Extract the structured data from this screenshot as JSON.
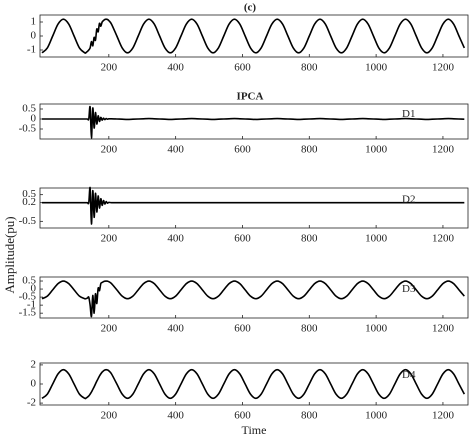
{
  "chart_data": [
    {
      "type": "line",
      "title": "(c)",
      "x": [
        0,
        16,
        32,
        48,
        64,
        80,
        96,
        112,
        128,
        132,
        136,
        140,
        144,
        148,
        152,
        156,
        160,
        164,
        168,
        172,
        176,
        180,
        184,
        188,
        192,
        196,
        200,
        208,
        224,
        240,
        256,
        272,
        288,
        304,
        320,
        336,
        352,
        368,
        384,
        400,
        416,
        432,
        448,
        464,
        480,
        496,
        512,
        528,
        544,
        560,
        576,
        592,
        608,
        624,
        640,
        656,
        672,
        688,
        704,
        720,
        736,
        752,
        768,
        784,
        800,
        816,
        832,
        848,
        864,
        880,
        896,
        912,
        928,
        944,
        960,
        976,
        992,
        1008,
        1024,
        1040,
        1056,
        1072,
        1088,
        1104,
        1120,
        1136,
        1152,
        1168,
        1184,
        1200,
        1216,
        1232,
        1248,
        1264
      ],
      "series": [
        {
          "color": "#000000",
          "values": [
            -1.2,
            -0.85,
            0,
            0.85,
            1.2,
            0.85,
            0,
            -0.85,
            -1.2,
            -1.18,
            -1.1,
            -1.0,
            -0.85,
            -0.4,
            -0.7,
            -0.1,
            -0.3,
            0.5,
            0.3,
            0.9,
            0.7,
            1.0,
            1.1,
            1.18,
            1.2,
            1.18,
            1.1,
            0.85,
            0,
            -0.85,
            -1.2,
            -0.85,
            0,
            0.85,
            1.2,
            0.85,
            0,
            -0.85,
            -1.2,
            -0.85,
            0,
            0.85,
            1.2,
            0.85,
            0,
            -0.85,
            -1.2,
            -0.85,
            0,
            0.85,
            1.2,
            0.85,
            0,
            -0.85,
            -1.2,
            -0.85,
            0,
            0.85,
            1.2,
            0.85,
            0,
            -0.85,
            -1.2,
            -0.85,
            0,
            0.85,
            1.2,
            0.85,
            0,
            -0.85,
            -1.2,
            -0.85,
            0,
            0.85,
            1.2,
            0.85,
            0,
            -0.85,
            -1.2,
            -0.85,
            0,
            0.85,
            1.2,
            0.85,
            0,
            -0.85,
            -1.2,
            -0.85,
            0,
            0.85,
            1.2,
            0.85,
            0,
            -0.85
          ]
        }
      ],
      "xlim": [
        -6,
        1275
      ],
      "xticks": [
        200,
        400,
        600,
        800,
        1000,
        1200
      ],
      "ylim": [
        -1.5,
        1.5
      ],
      "yticks": [
        1,
        0,
        -1
      ]
    },
    {
      "type": "line",
      "title": "IPCA",
      "annotation": "D1",
      "x": [
        0,
        16,
        32,
        48,
        64,
        80,
        96,
        112,
        128,
        132,
        136,
        140,
        144,
        148,
        152,
        156,
        160,
        164,
        168,
        172,
        176,
        180,
        184,
        188,
        192,
        196,
        200,
        208,
        224,
        240,
        256,
        272,
        288,
        304,
        320,
        336,
        352,
        368,
        384,
        400,
        416,
        432,
        448,
        464,
        480,
        496,
        512,
        528,
        544,
        560,
        576,
        592,
        608,
        624,
        640,
        656,
        672,
        688,
        704,
        720,
        736,
        752,
        768,
        784,
        800,
        816,
        832,
        848,
        864,
        880,
        896,
        912,
        928,
        944,
        960,
        976,
        992,
        1008,
        1024,
        1040,
        1056,
        1072,
        1088,
        1104,
        1120,
        1136,
        1152,
        1168,
        1184,
        1200,
        1216,
        1232,
        1248,
        1264
      ],
      "series": [
        {
          "color": "#000000",
          "values": [
            0,
            0,
            0,
            0,
            0,
            0,
            0,
            0,
            0,
            0,
            0,
            0,
            0.6,
            -0.95,
            0.55,
            -0.45,
            0.32,
            -0.25,
            0.16,
            -0.12,
            0.08,
            -0.06,
            0.04,
            -0.03,
            0.02,
            -0.01,
            0.01,
            0.01,
            0,
            -0.01,
            -0.02,
            -0.01,
            0,
            0.01,
            0.02,
            0.01,
            0,
            -0.01,
            -0.02,
            -0.01,
            0,
            0.01,
            0.02,
            0.01,
            0,
            -0.01,
            -0.02,
            -0.01,
            0,
            0.01,
            0.02,
            0.01,
            0,
            -0.01,
            -0.02,
            -0.01,
            0,
            0.01,
            0.02,
            0.01,
            0,
            -0.01,
            -0.02,
            -0.01,
            0,
            0.01,
            0.02,
            0.01,
            0,
            -0.01,
            -0.02,
            -0.01,
            0,
            0.01,
            0.02,
            0.01,
            0,
            -0.01,
            -0.02,
            -0.01,
            0,
            0.01,
            0.02,
            0.01,
            0,
            -0.01,
            -0.02,
            -0.01,
            0,
            0.01,
            0.02,
            0.01,
            0,
            -0.01
          ]
        }
      ],
      "xlim": [
        -6,
        1275
      ],
      "xticks": [
        200,
        400,
        600,
        800,
        1000,
        1200
      ],
      "ylim": [
        -1,
        0.75
      ],
      "yticks": [
        0.5,
        0,
        -0.5
      ]
    },
    {
      "type": "line",
      "annotation": "D2",
      "ylabel": "Amplitude(pu)",
      "x": [
        0,
        16,
        32,
        48,
        64,
        80,
        96,
        112,
        128,
        132,
        136,
        140,
        144,
        148,
        152,
        156,
        160,
        164,
        168,
        172,
        176,
        180,
        184,
        188,
        192,
        196,
        200,
        208,
        224,
        240,
        256,
        272,
        288,
        304,
        320,
        336,
        352,
        368,
        384,
        400,
        416,
        432,
        448,
        464,
        480,
        496,
        512,
        528,
        544,
        560,
        576,
        592,
        608,
        624,
        640,
        656,
        672,
        688,
        704,
        720,
        736,
        752,
        768,
        784,
        800,
        816,
        832,
        848,
        864,
        880,
        896,
        912,
        928,
        944,
        960,
        976,
        992,
        1008,
        1024,
        1040,
        1056,
        1072,
        1088,
        1104,
        1120,
        1136,
        1152,
        1168,
        1184,
        1200,
        1216,
        1232,
        1248,
        1264
      ],
      "series": [
        {
          "color": "#000000",
          "values": [
            0.2,
            0.2,
            0.2,
            0.2,
            0.2,
            0.2,
            0.2,
            0.2,
            0.2,
            0.2,
            0.2,
            0.2,
            0.75,
            -0.6,
            0.65,
            -0.35,
            0.55,
            -0.15,
            0.45,
            0,
            0.35,
            0.1,
            0.28,
            0.15,
            0.24,
            0.18,
            0.21,
            0.2,
            0.2,
            0.2,
            0.2,
            0.2,
            0.2,
            0.2,
            0.2,
            0.2,
            0.2,
            0.2,
            0.2,
            0.2,
            0.2,
            0.2,
            0.2,
            0.2,
            0.2,
            0.2,
            0.2,
            0.2,
            0.2,
            0.2,
            0.2,
            0.2,
            0.2,
            0.2,
            0.2,
            0.2,
            0.2,
            0.2,
            0.2,
            0.2,
            0.2,
            0.2,
            0.2,
            0.2,
            0.2,
            0.2,
            0.2,
            0.2,
            0.2,
            0.2,
            0.2,
            0.2,
            0.2,
            0.2,
            0.2,
            0.2,
            0.2,
            0.2,
            0.2,
            0.2,
            0.2,
            0.2,
            0.2,
            0.2,
            0.2,
            0.2,
            0.2,
            0.2,
            0.2,
            0.2,
            0.2,
            0.2,
            0.2,
            0.2
          ]
        }
      ],
      "xlim": [
        -6,
        1275
      ],
      "xticks": [
        200,
        400,
        600,
        800,
        1000,
        1200
      ],
      "ylim": [
        -0.75,
        0.75
      ],
      "yticks": [
        0.5,
        0.2,
        -0.5
      ]
    },
    {
      "type": "line",
      "annotation": "D3",
      "x": [
        0,
        16,
        32,
        48,
        64,
        80,
        96,
        112,
        128,
        132,
        136,
        140,
        144,
        148,
        152,
        156,
        160,
        164,
        168,
        172,
        176,
        180,
        184,
        188,
        192,
        196,
        200,
        208,
        224,
        240,
        256,
        272,
        288,
        304,
        320,
        336,
        352,
        368,
        384,
        400,
        416,
        432,
        448,
        464,
        480,
        496,
        512,
        528,
        544,
        560,
        576,
        592,
        608,
        624,
        640,
        656,
        672,
        688,
        704,
        720,
        736,
        752,
        768,
        784,
        800,
        816,
        832,
        848,
        864,
        880,
        896,
        912,
        928,
        944,
        960,
        976,
        992,
        1008,
        1024,
        1040,
        1056,
        1072,
        1088,
        1104,
        1120,
        1136,
        1152,
        1168,
        1184,
        1200,
        1216,
        1232,
        1248,
        1264
      ],
      "series": [
        {
          "color": "#000000",
          "values": [
            -0.6,
            -0.44,
            -0.05,
            0.34,
            0.5,
            0.34,
            -0.05,
            -0.44,
            -0.6,
            -0.59,
            -0.56,
            -0.51,
            -1.0,
            -1.7,
            -0.4,
            -1.5,
            -0.3,
            -0.9,
            0.05,
            -0.1,
            0.34,
            0.41,
            0.46,
            0.49,
            0.5,
            0.49,
            0.46,
            0.34,
            -0.05,
            -0.44,
            -0.6,
            -0.44,
            -0.05,
            0.34,
            0.5,
            0.34,
            -0.05,
            -0.44,
            -0.6,
            -0.44,
            -0.05,
            0.34,
            0.5,
            0.34,
            -0.05,
            -0.44,
            -0.6,
            -0.44,
            -0.05,
            0.34,
            0.5,
            0.34,
            -0.05,
            -0.44,
            -0.6,
            -0.44,
            -0.05,
            0.34,
            0.5,
            0.34,
            -0.05,
            -0.44,
            -0.6,
            -0.44,
            -0.05,
            0.34,
            0.5,
            0.34,
            -0.05,
            -0.44,
            -0.6,
            -0.44,
            -0.05,
            0.34,
            0.5,
            0.34,
            -0.05,
            -0.44,
            -0.6,
            -0.44,
            -0.05,
            0.34,
            0.5,
            0.34,
            -0.05,
            -0.44,
            -0.6,
            -0.44,
            -0.05,
            0.34,
            0.5,
            0.34,
            -0.05,
            -0.44
          ]
        }
      ],
      "xlim": [
        -6,
        1275
      ],
      "xticks": [
        200,
        400,
        600,
        800,
        1000,
        1200
      ],
      "ylim": [
        -1.8,
        0.75
      ],
      "yticks": [
        0.5,
        0,
        -0.5,
        -1,
        -1.5
      ]
    },
    {
      "type": "line",
      "annotation": "D4",
      "xlabel": "Time",
      "x": [
        0,
        16,
        32,
        48,
        64,
        80,
        96,
        112,
        128,
        132,
        136,
        140,
        144,
        148,
        152,
        156,
        160,
        164,
        168,
        172,
        176,
        180,
        184,
        188,
        192,
        196,
        200,
        208,
        224,
        240,
        256,
        272,
        288,
        304,
        320,
        336,
        352,
        368,
        384,
        400,
        416,
        432,
        448,
        464,
        480,
        496,
        512,
        528,
        544,
        560,
        576,
        592,
        608,
        624,
        640,
        656,
        672,
        688,
        704,
        720,
        736,
        752,
        768,
        784,
        800,
        816,
        832,
        848,
        864,
        880,
        896,
        912,
        928,
        944,
        960,
        976,
        992,
        1008,
        1024,
        1040,
        1056,
        1072,
        1088,
        1104,
        1120,
        1136,
        1152,
        1168,
        1184,
        1200,
        1216,
        1232,
        1248,
        1264
      ],
      "series": [
        {
          "color": "#000000",
          "values": [
            -1.5,
            -1.06,
            0,
            1.06,
            1.5,
            1.06,
            0,
            -1.06,
            -1.5,
            -1.47,
            -1.38,
            -1.25,
            -1.06,
            -0.84,
            -0.57,
            -0.3,
            0,
            0.3,
            0.57,
            0.84,
            1.06,
            1.25,
            1.38,
            1.47,
            1.5,
            1.47,
            1.38,
            1.06,
            0,
            -1.06,
            -1.5,
            -1.06,
            0,
            1.06,
            1.5,
            1.06,
            0,
            -1.06,
            -1.5,
            -1.06,
            0,
            1.06,
            1.5,
            1.06,
            0,
            -1.06,
            -1.5,
            -1.06,
            0,
            1.06,
            1.5,
            1.06,
            0,
            -1.06,
            -1.5,
            -1.06,
            0,
            1.06,
            1.5,
            1.06,
            0,
            -1.06,
            -1.5,
            -1.06,
            0,
            1.06,
            1.5,
            1.06,
            0,
            -1.06,
            -1.5,
            -1.06,
            0,
            1.06,
            1.5,
            1.06,
            0,
            -1.06,
            -1.5,
            -1.06,
            0,
            1.06,
            1.5,
            1.06,
            0,
            -1.06,
            -1.5,
            -1.06,
            0,
            1.06,
            1.5,
            1.06,
            0,
            -1.06
          ]
        }
      ],
      "xlim": [
        -6,
        1275
      ],
      "xticks": [
        200,
        400,
        600,
        800,
        1000,
        1200
      ],
      "ylim": [
        -2.2,
        2.2
      ],
      "yticks": [
        2,
        0,
        -2
      ]
    }
  ]
}
